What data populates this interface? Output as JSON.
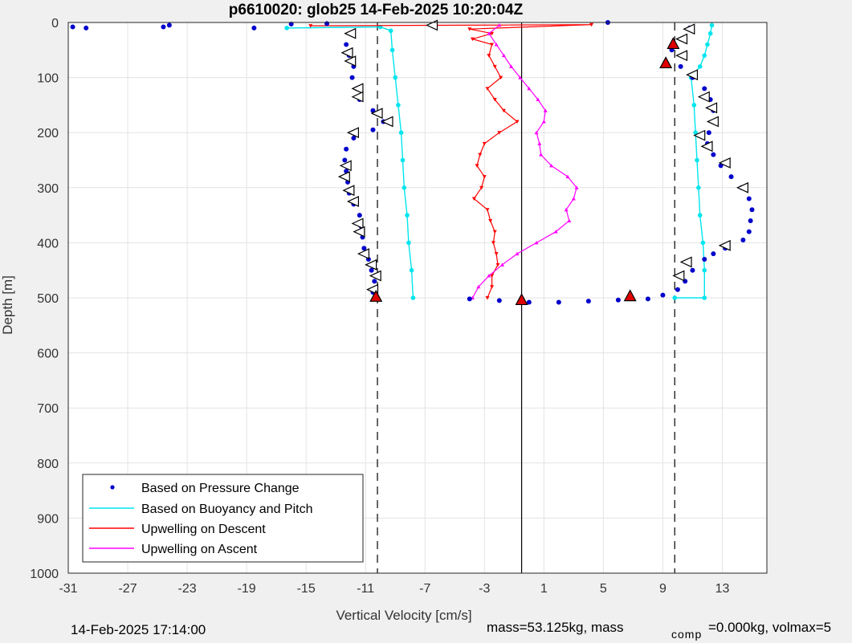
{
  "chart_data": {
    "type": "scatter",
    "title": "p6610020: glob25 14-Feb-2025 10:20:04Z",
    "xlabel": "Vertical Velocity [cm/s]",
    "ylabel": "Depth [m]",
    "xlim": [
      -31,
      16
    ],
    "ylim": [
      0,
      1000
    ],
    "y_reversed": true,
    "grid": true,
    "xticks": [
      -31,
      -27,
      -23,
      -19,
      -15,
      -11,
      -7,
      -3,
      1,
      5,
      9,
      13
    ],
    "yticks": [
      0,
      100,
      200,
      300,
      400,
      500,
      600,
      700,
      800,
      900,
      1000
    ],
    "reference_lines": {
      "solid_x": -0.5,
      "dashed_x": [
        -10.2,
        9.8
      ]
    },
    "legend_position": "bottom-left",
    "legend": [
      {
        "label": "Based on Pressure Change",
        "color": "#0000cc",
        "style": "dot"
      },
      {
        "label": "Based on Buoyancy and Pitch",
        "color": "#00e5ee",
        "style": "line"
      },
      {
        "label": "Upwelling on Descent",
        "color": "#ff0000",
        "style": "line"
      },
      {
        "label": "Upwelling on Ascent",
        "color": "#ff00ff",
        "style": "line"
      }
    ],
    "series": [
      {
        "name": "Based on Pressure Change",
        "color": "#0000cc",
        "descent": [
          [
            -12,
            20
          ],
          [
            -12.3,
            40
          ],
          [
            -12.1,
            60
          ],
          [
            -11.8,
            80
          ],
          [
            -11.9,
            100
          ],
          [
            -11.6,
            120
          ],
          [
            -11.4,
            140
          ],
          [
            -10.5,
            160
          ],
          [
            -9.8,
            180
          ],
          [
            -10.5,
            195
          ],
          [
            -11.8,
            210
          ],
          [
            -12.3,
            230
          ],
          [
            -12.4,
            250
          ],
          [
            -12.3,
            270
          ],
          [
            -12.2,
            290
          ],
          [
            -12.1,
            310
          ],
          [
            -11.8,
            330
          ],
          [
            -11.4,
            350
          ],
          [
            -11.3,
            370
          ],
          [
            -11.2,
            390
          ],
          [
            -11.1,
            410
          ],
          [
            -10.8,
            430
          ],
          [
            -10.6,
            450
          ],
          [
            -10.4,
            470
          ],
          [
            -10.5,
            490
          ],
          [
            -10.3,
            500
          ]
        ],
        "ascent": [
          [
            10.8,
            10
          ],
          [
            10.4,
            30
          ],
          [
            9.6,
            50
          ],
          [
            10.2,
            80
          ],
          [
            11,
            100
          ],
          [
            11.8,
            120
          ],
          [
            12.2,
            140
          ],
          [
            12.4,
            160
          ],
          [
            12.5,
            180
          ],
          [
            12.1,
            200
          ],
          [
            12,
            220
          ],
          [
            12.4,
            240
          ],
          [
            12.9,
            260
          ],
          [
            13.6,
            280
          ],
          [
            14.3,
            300
          ],
          [
            14.8,
            320
          ],
          [
            15,
            340
          ],
          [
            14.9,
            360
          ],
          [
            14.8,
            380
          ],
          [
            14.4,
            395
          ],
          [
            13.2,
            410
          ],
          [
            12.4,
            420
          ],
          [
            11.8,
            430
          ],
          [
            11,
            450
          ],
          [
            10.5,
            470
          ],
          [
            10,
            485
          ],
          [
            9,
            495
          ]
        ],
        "bottom": [
          [
            -4,
            502
          ],
          [
            -2,
            505
          ],
          [
            0,
            508
          ],
          [
            2,
            508
          ],
          [
            4,
            506
          ],
          [
            6,
            504
          ],
          [
            8,
            502
          ]
        ],
        "surface": [
          [
            -30.7,
            8
          ],
          [
            -29.8,
            10
          ],
          [
            -24.6,
            8
          ],
          [
            -24.2,
            5
          ],
          [
            -18.5,
            10
          ],
          [
            -16,
            3
          ],
          [
            -13.6,
            2
          ],
          [
            5.3,
            0
          ]
        ]
      },
      {
        "name": "Based on Buoyancy and Pitch",
        "color": "#00e5ee",
        "descent": [
          [
            -16.3,
            10
          ],
          [
            -10,
            8
          ],
          [
            -9.3,
            15
          ],
          [
            -9.2,
            50
          ],
          [
            -9,
            100
          ],
          [
            -8.8,
            150
          ],
          [
            -8.6,
            200
          ],
          [
            -8.5,
            250
          ],
          [
            -8.4,
            300
          ],
          [
            -8.2,
            350
          ],
          [
            -8.1,
            400
          ],
          [
            -7.9,
            450
          ],
          [
            -7.8,
            500
          ]
        ],
        "ascent": [
          [
            9.8,
            500
          ],
          [
            11.8,
            500
          ],
          [
            11.8,
            450
          ],
          [
            11.7,
            400
          ],
          [
            11.5,
            350
          ],
          [
            11.4,
            300
          ],
          [
            11.3,
            250
          ],
          [
            11.2,
            200
          ],
          [
            11.1,
            150
          ],
          [
            10.9,
            100
          ],
          [
            11.5,
            80
          ],
          [
            11.8,
            60
          ],
          [
            12,
            40
          ],
          [
            12.2,
            20
          ],
          [
            12.3,
            5
          ]
        ]
      },
      {
        "name": "Upwelling on Descent",
        "color": "#ff0000",
        "values": [
          [
            -14.7,
            6
          ],
          [
            4.2,
            4
          ],
          [
            -4,
            12
          ],
          [
            -2.5,
            20
          ],
          [
            -3.8,
            30
          ],
          [
            -2.5,
            40
          ],
          [
            -2.7,
            60
          ],
          [
            -2.3,
            80
          ],
          [
            -1.9,
            100
          ],
          [
            -2.8,
            120
          ],
          [
            -2.3,
            140
          ],
          [
            -1.7,
            160
          ],
          [
            -0.8,
            180
          ],
          [
            -2,
            200
          ],
          [
            -3,
            220
          ],
          [
            -3.3,
            240
          ],
          [
            -3.5,
            260
          ],
          [
            -3,
            280
          ],
          [
            -3.2,
            300
          ],
          [
            -3.7,
            320
          ],
          [
            -2.8,
            340
          ],
          [
            -2.6,
            360
          ],
          [
            -2.3,
            380
          ],
          [
            -2.4,
            400
          ],
          [
            -2.2,
            420
          ],
          [
            -2.1,
            440
          ],
          [
            -2.5,
            460
          ],
          [
            -2.5,
            480
          ],
          [
            -2.8,
            500
          ]
        ]
      },
      {
        "name": "Upwelling on Ascent",
        "color": "#ff00ff",
        "values": [
          [
            -3.8,
            500
          ],
          [
            -3.4,
            480
          ],
          [
            -2.7,
            460
          ],
          [
            -1.8,
            440
          ],
          [
            -0.8,
            420
          ],
          [
            0.5,
            400
          ],
          [
            1.8,
            380
          ],
          [
            2.7,
            360
          ],
          [
            2.5,
            340
          ],
          [
            3,
            320
          ],
          [
            3.2,
            300
          ],
          [
            2.6,
            280
          ],
          [
            1.5,
            260
          ],
          [
            0.8,
            240
          ],
          [
            0.7,
            220
          ],
          [
            0.5,
            200
          ],
          [
            1,
            180
          ],
          [
            1.1,
            160
          ],
          [
            0.6,
            140
          ],
          [
            0,
            120
          ],
          [
            -0.6,
            100
          ],
          [
            -1.2,
            80
          ],
          [
            -1.7,
            60
          ],
          [
            -2.2,
            40
          ],
          [
            -2.7,
            20
          ],
          [
            -2,
            5
          ]
        ]
      }
    ],
    "markers": {
      "triangles_open": [
        [
          -12,
          20
        ],
        [
          -12.2,
          55
        ],
        [
          -12,
          70
        ],
        [
          -11.5,
          120
        ],
        [
          -11.5,
          135
        ],
        [
          -10.2,
          165
        ],
        [
          -9.5,
          180
        ],
        [
          -11.8,
          200
        ],
        [
          -12.3,
          260
        ],
        [
          -12.4,
          280
        ],
        [
          -12.1,
          305
        ],
        [
          -11.8,
          325
        ],
        [
          -11.5,
          365
        ],
        [
          -11.4,
          380
        ],
        [
          -11.1,
          420
        ],
        [
          -10.6,
          440
        ],
        [
          -10.3,
          460
        ],
        [
          -10.5,
          485
        ],
        [
          10.8,
          12
        ],
        [
          10.3,
          30
        ],
        [
          10.3,
          60
        ],
        [
          11,
          95
        ],
        [
          11.8,
          135
        ],
        [
          12.3,
          155
        ],
        [
          12.4,
          180
        ],
        [
          11.5,
          205
        ],
        [
          12,
          225
        ],
        [
          13.2,
          255
        ],
        [
          14.4,
          300
        ],
        [
          13.2,
          405
        ],
        [
          10.6,
          435
        ],
        [
          10.1,
          460
        ],
        [
          -6.5,
          5
        ]
      ],
      "triangles_red": [
        [
          9.7,
          40
        ],
        [
          9.2,
          75
        ],
        [
          6.8,
          498
        ],
        [
          -10.3,
          499
        ],
        [
          -0.5,
          505
        ]
      ]
    }
  },
  "footer": {
    "timestamp": "14-Feb-2025 17:14:00",
    "mass_text": "mass=53.125kg, mass",
    "comp_subscript": "comp",
    "comp_text": "=0.000kg, volmax=5"
  }
}
